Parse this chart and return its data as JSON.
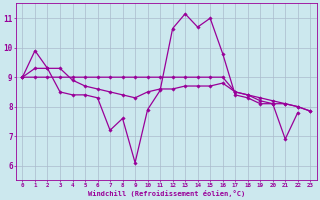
{
  "title": "",
  "xlabel": "Windchill (Refroidissement éolien,°C)",
  "bg_color": "#cce8ee",
  "line_color": "#990099",
  "grid_color": "#aabbcc",
  "x_hours": [
    0,
    1,
    2,
    3,
    4,
    5,
    6,
    7,
    8,
    9,
    10,
    11,
    12,
    13,
    14,
    15,
    16,
    17,
    18,
    19,
    20,
    21,
    22,
    23
  ],
  "series1": [
    9.0,
    9.9,
    9.3,
    8.5,
    8.4,
    8.4,
    8.3,
    7.2,
    7.6,
    6.1,
    7.9,
    8.55,
    10.65,
    11.15,
    10.7,
    11.0,
    9.8,
    8.4,
    8.3,
    8.1,
    8.1,
    6.9,
    7.8,
    null
  ],
  "series2": [
    9.0,
    9.0,
    9.0,
    9.0,
    9.0,
    9.0,
    9.0,
    9.0,
    9.0,
    9.0,
    9.0,
    9.0,
    9.0,
    9.0,
    9.0,
    9.0,
    9.0,
    8.5,
    8.4,
    8.2,
    8.1,
    8.1,
    8.0,
    7.85
  ],
  "series3": [
    9.0,
    9.3,
    9.3,
    9.3,
    8.9,
    8.7,
    8.6,
    8.5,
    8.4,
    8.3,
    8.5,
    8.6,
    8.6,
    8.7,
    8.7,
    8.7,
    8.8,
    8.5,
    8.4,
    8.3,
    8.2,
    8.1,
    8.0,
    7.85
  ],
  "ylim": [
    5.5,
    11.5
  ],
  "yticks": [
    6,
    7,
    8,
    9,
    10,
    11
  ],
  "xticks": [
    0,
    1,
    2,
    3,
    4,
    5,
    6,
    7,
    8,
    9,
    10,
    11,
    12,
    13,
    14,
    15,
    16,
    17,
    18,
    19,
    20,
    21,
    22,
    23
  ]
}
